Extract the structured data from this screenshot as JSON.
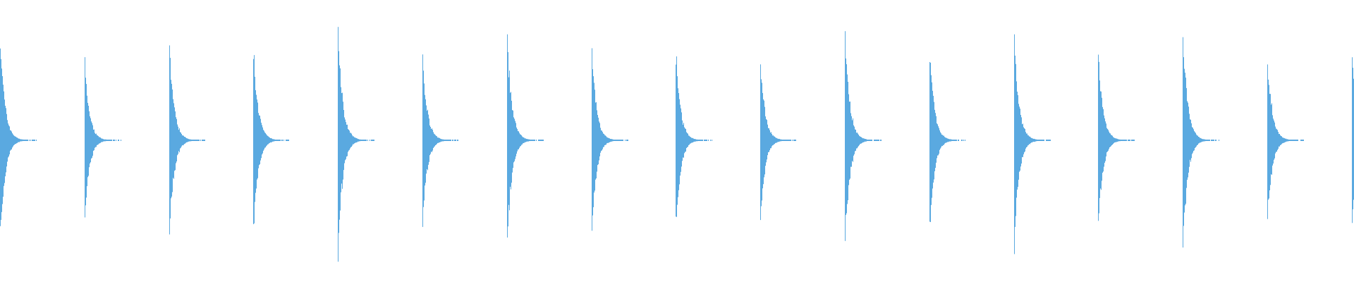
{
  "waveform": {
    "color": "#5aa9e0",
    "background": "#ffffff",
    "transient_count": 17,
    "peak_amplitudes": [
      0.82,
      0.61,
      0.75,
      0.75,
      0.89,
      0.67,
      0.82,
      0.71,
      0.7,
      0.62,
      0.85,
      0.74,
      0.84,
      0.73,
      0.87,
      0.67,
      0.64
    ]
  }
}
